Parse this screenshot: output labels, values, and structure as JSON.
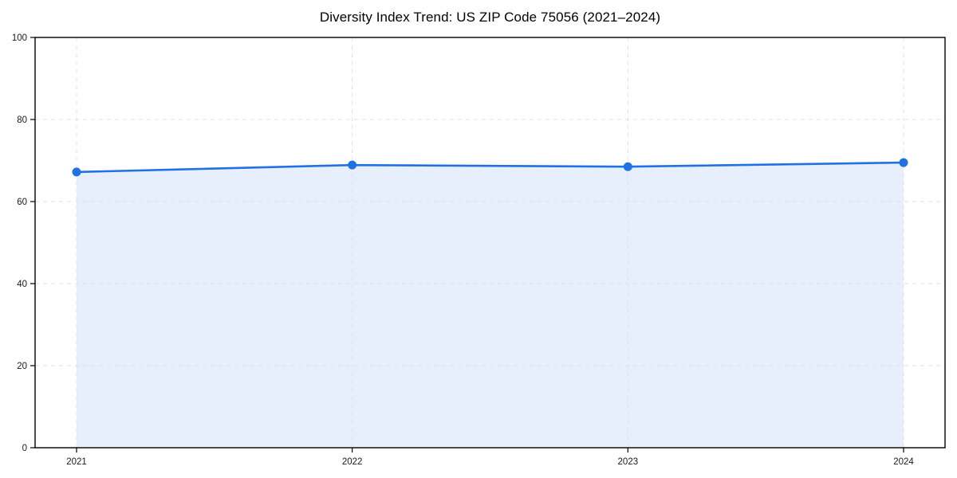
{
  "chart_data": {
    "type": "area",
    "title": "Diversity Index Trend: US ZIP Code 75056 (2021–2024)",
    "categories": [
      "2021",
      "2022",
      "2023",
      "2024"
    ],
    "series": [
      {
        "name": "Diversity Index",
        "values": [
          67.2,
          68.9,
          68.5,
          69.5
        ]
      }
    ],
    "xlabel": "",
    "ylabel": "",
    "ylim": [
      0,
      100
    ],
    "yticks": [
      0,
      20,
      40,
      60,
      80,
      100
    ],
    "grid": true,
    "grid_style": "dashed",
    "legend": "none",
    "marker": "circle",
    "colors": {
      "line": "#2271e3",
      "marker": "#2271e3",
      "fill": "#e7effc",
      "grid": "#e0e0e0",
      "axis": "#000000",
      "text": "#1a1a1a",
      "background": "#ffffff"
    }
  }
}
